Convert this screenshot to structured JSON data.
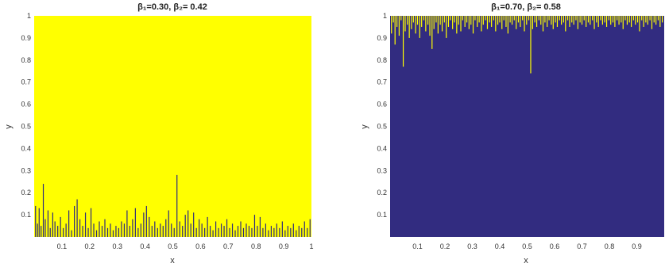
{
  "chart_data": [
    {
      "type": "heatmap",
      "title": "β₁=0.30, β₂= 0.42",
      "xlabel": "x",
      "ylabel": "y",
      "xlim": [
        0,
        1
      ],
      "ylim": [
        0,
        1
      ],
      "xticks": [
        "0.1",
        "0.2",
        "0.3",
        "0.4",
        "0.5",
        "0.6",
        "0.7",
        "0.8",
        "0.9",
        "1"
      ],
      "yticks": [
        "0.1",
        "0.2",
        "0.3",
        "0.4",
        "0.5",
        "0.6",
        "0.7",
        "0.8",
        "0.9",
        "1"
      ],
      "colors": {
        "fill": "#ffff00",
        "spikes": "#2e2a7c"
      },
      "spike_direction": "up",
      "base_level": 0.0,
      "spikes": [
        [
          0.005,
          0.14
        ],
        [
          0.012,
          0.06
        ],
        [
          0.018,
          0.13
        ],
        [
          0.025,
          0.05
        ],
        [
          0.033,
          0.24
        ],
        [
          0.04,
          0.08
        ],
        [
          0.05,
          0.12
        ],
        [
          0.058,
          0.04
        ],
        [
          0.067,
          0.11
        ],
        [
          0.075,
          0.07
        ],
        [
          0.085,
          0.05
        ],
        [
          0.095,
          0.09
        ],
        [
          0.105,
          0.04
        ],
        [
          0.115,
          0.06
        ],
        [
          0.125,
          0.12
        ],
        [
          0.135,
          0.03
        ],
        [
          0.145,
          0.14
        ],
        [
          0.155,
          0.17
        ],
        [
          0.165,
          0.08
        ],
        [
          0.175,
          0.05
        ],
        [
          0.185,
          0.11
        ],
        [
          0.195,
          0.04
        ],
        [
          0.205,
          0.13
        ],
        [
          0.215,
          0.06
        ],
        [
          0.225,
          0.03
        ],
        [
          0.235,
          0.07
        ],
        [
          0.245,
          0.05
        ],
        [
          0.255,
          0.08
        ],
        [
          0.265,
          0.04
        ],
        [
          0.275,
          0.06
        ],
        [
          0.285,
          0.03
        ],
        [
          0.295,
          0.05
        ],
        [
          0.305,
          0.04
        ],
        [
          0.315,
          0.07
        ],
        [
          0.325,
          0.06
        ],
        [
          0.335,
          0.12
        ],
        [
          0.345,
          0.05
        ],
        [
          0.355,
          0.08
        ],
        [
          0.365,
          0.13
        ],
        [
          0.375,
          0.04
        ],
        [
          0.385,
          0.06
        ],
        [
          0.395,
          0.11
        ],
        [
          0.405,
          0.14
        ],
        [
          0.415,
          0.09
        ],
        [
          0.425,
          0.05
        ],
        [
          0.435,
          0.07
        ],
        [
          0.445,
          0.04
        ],
        [
          0.455,
          0.06
        ],
        [
          0.465,
          0.05
        ],
        [
          0.475,
          0.08
        ],
        [
          0.485,
          0.12
        ],
        [
          0.495,
          0.06
        ],
        [
          0.505,
          0.04
        ],
        [
          0.515,
          0.28
        ],
        [
          0.525,
          0.07
        ],
        [
          0.535,
          0.05
        ],
        [
          0.545,
          0.1
        ],
        [
          0.555,
          0.12
        ],
        [
          0.565,
          0.06
        ],
        [
          0.575,
          0.11
        ],
        [
          0.585,
          0.04
        ],
        [
          0.595,
          0.08
        ],
        [
          0.605,
          0.06
        ],
        [
          0.615,
          0.04
        ],
        [
          0.625,
          0.09
        ],
        [
          0.635,
          0.05
        ],
        [
          0.645,
          0.03
        ],
        [
          0.655,
          0.07
        ],
        [
          0.665,
          0.04
        ],
        [
          0.675,
          0.06
        ],
        [
          0.685,
          0.05
        ],
        [
          0.695,
          0.08
        ],
        [
          0.705,
          0.04
        ],
        [
          0.715,
          0.06
        ],
        [
          0.725,
          0.03
        ],
        [
          0.735,
          0.05
        ],
        [
          0.745,
          0.07
        ],
        [
          0.755,
          0.04
        ],
        [
          0.765,
          0.06
        ],
        [
          0.775,
          0.05
        ],
        [
          0.785,
          0.04
        ],
        [
          0.795,
          0.1
        ],
        [
          0.805,
          0.05
        ],
        [
          0.815,
          0.09
        ],
        [
          0.825,
          0.04
        ],
        [
          0.835,
          0.06
        ],
        [
          0.845,
          0.03
        ],
        [
          0.855,
          0.05
        ],
        [
          0.865,
          0.04
        ],
        [
          0.875,
          0.06
        ],
        [
          0.885,
          0.04
        ],
        [
          0.895,
          0.07
        ],
        [
          0.905,
          0.03
        ],
        [
          0.915,
          0.05
        ],
        [
          0.925,
          0.04
        ],
        [
          0.935,
          0.06
        ],
        [
          0.945,
          0.03
        ],
        [
          0.955,
          0.05
        ],
        [
          0.965,
          0.04
        ],
        [
          0.975,
          0.07
        ],
        [
          0.985,
          0.04
        ],
        [
          0.995,
          0.08
        ]
      ]
    },
    {
      "type": "heatmap",
      "title": "β₁=0.70, β₂= 0.58",
      "xlabel": "x",
      "ylabel": "y",
      "xlim": [
        0,
        1
      ],
      "ylim": [
        0,
        1
      ],
      "xticks": [
        "0.1",
        "0.2",
        "0.3",
        "0.4",
        "0.5",
        "0.6",
        "0.7",
        "0.8",
        "0.9"
      ],
      "yticks": [
        "0.1",
        "0.2",
        "0.3",
        "0.4",
        "0.5",
        "0.6",
        "0.7",
        "0.8",
        "0.9",
        "1"
      ],
      "colors": {
        "fill": "#322c80",
        "spikes": "#ffff00"
      },
      "spike_direction": "down",
      "base_level": 1.0,
      "spikes": [
        [
          0.005,
          0.92
        ],
        [
          0.012,
          0.97
        ],
        [
          0.018,
          0.87
        ],
        [
          0.025,
          0.95
        ],
        [
          0.033,
          0.91
        ],
        [
          0.04,
          0.98
        ],
        [
          0.048,
          0.77
        ],
        [
          0.055,
          0.93
        ],
        [
          0.063,
          0.96
        ],
        [
          0.07,
          0.9
        ],
        [
          0.078,
          0.94
        ],
        [
          0.085,
          0.97
        ],
        [
          0.093,
          0.92
        ],
        [
          0.1,
          0.96
        ],
        [
          0.108,
          0.9
        ],
        [
          0.115,
          0.95
        ],
        [
          0.123,
          0.98
        ],
        [
          0.13,
          0.93
        ],
        [
          0.138,
          0.96
        ],
        [
          0.145,
          0.91
        ],
        [
          0.153,
          0.85
        ],
        [
          0.16,
          0.94
        ],
        [
          0.168,
          0.97
        ],
        [
          0.175,
          0.92
        ],
        [
          0.183,
          0.96
        ],
        [
          0.19,
          0.93
        ],
        [
          0.198,
          0.97
        ],
        [
          0.205,
          0.9
        ],
        [
          0.213,
          0.95
        ],
        [
          0.22,
          0.98
        ],
        [
          0.228,
          0.94
        ],
        [
          0.235,
          0.97
        ],
        [
          0.243,
          0.92
        ],
        [
          0.25,
          0.96
        ],
        [
          0.258,
          0.93
        ],
        [
          0.265,
          0.98
        ],
        [
          0.273,
          0.95
        ],
        [
          0.28,
          0.97
        ],
        [
          0.288,
          0.94
        ],
        [
          0.295,
          0.96
        ],
        [
          0.303,
          0.92
        ],
        [
          0.31,
          0.98
        ],
        [
          0.318,
          0.95
        ],
        [
          0.325,
          0.97
        ],
        [
          0.333,
          0.93
        ],
        [
          0.34,
          0.96
        ],
        [
          0.348,
          0.98
        ],
        [
          0.355,
          0.94
        ],
        [
          0.363,
          0.97
        ],
        [
          0.37,
          0.95
        ],
        [
          0.378,
          0.98
        ],
        [
          0.385,
          0.93
        ],
        [
          0.393,
          0.96
        ],
        [
          0.4,
          0.97
        ],
        [
          0.408,
          0.94
        ],
        [
          0.415,
          0.98
        ],
        [
          0.423,
          0.95
        ],
        [
          0.43,
          0.92
        ],
        [
          0.438,
          0.97
        ],
        [
          0.445,
          0.96
        ],
        [
          0.453,
          0.98
        ],
        [
          0.46,
          0.94
        ],
        [
          0.468,
          0.97
        ],
        [
          0.475,
          0.95
        ],
        [
          0.483,
          0.98
        ],
        [
          0.49,
          0.93
        ],
        [
          0.498,
          0.96
        ],
        [
          0.506,
          0.98
        ],
        [
          0.513,
          0.74
        ],
        [
          0.52,
          0.94
        ],
        [
          0.528,
          0.97
        ],
        [
          0.535,
          0.95
        ],
        [
          0.543,
          0.98
        ],
        [
          0.55,
          0.96
        ],
        [
          0.558,
          0.93
        ],
        [
          0.565,
          0.97
        ],
        [
          0.573,
          0.95
        ],
        [
          0.58,
          0.98
        ],
        [
          0.588,
          0.96
        ],
        [
          0.595,
          0.94
        ],
        [
          0.603,
          0.97
        ],
        [
          0.61,
          0.95
        ],
        [
          0.618,
          0.98
        ],
        [
          0.625,
          0.96
        ],
        [
          0.633,
          0.97
        ],
        [
          0.64,
          0.93
        ],
        [
          0.648,
          0.98
        ],
        [
          0.655,
          0.95
        ],
        [
          0.663,
          0.97
        ],
        [
          0.67,
          0.96
        ],
        [
          0.678,
          0.98
        ],
        [
          0.685,
          0.94
        ],
        [
          0.693,
          0.97
        ],
        [
          0.7,
          0.96
        ],
        [
          0.708,
          0.98
        ],
        [
          0.715,
          0.95
        ],
        [
          0.723,
          0.97
        ],
        [
          0.73,
          0.96
        ],
        [
          0.738,
          0.98
        ],
        [
          0.745,
          0.94
        ],
        [
          0.753,
          0.97
        ],
        [
          0.76,
          0.95
        ],
        [
          0.768,
          0.98
        ],
        [
          0.775,
          0.96
        ],
        [
          0.783,
          0.97
        ],
        [
          0.79,
          0.95
        ],
        [
          0.798,
          0.98
        ],
        [
          0.805,
          0.96
        ],
        [
          0.813,
          0.97
        ],
        [
          0.82,
          0.95
        ],
        [
          0.828,
          0.98
        ],
        [
          0.835,
          0.96
        ],
        [
          0.843,
          0.97
        ],
        [
          0.85,
          0.94
        ],
        [
          0.858,
          0.98
        ],
        [
          0.865,
          0.96
        ],
        [
          0.873,
          0.97
        ],
        [
          0.88,
          0.95
        ],
        [
          0.888,
          0.98
        ],
        [
          0.895,
          0.96
        ],
        [
          0.903,
          0.97
        ],
        [
          0.91,
          0.93
        ],
        [
          0.918,
          0.98
        ],
        [
          0.925,
          0.95
        ],
        [
          0.933,
          0.97
        ],
        [
          0.94,
          0.96
        ],
        [
          0.948,
          0.98
        ],
        [
          0.955,
          0.94
        ],
        [
          0.963,
          0.97
        ],
        [
          0.97,
          0.96
        ],
        [
          0.978,
          0.98
        ],
        [
          0.985,
          0.95
        ],
        [
          0.993,
          0.97
        ]
      ]
    }
  ]
}
